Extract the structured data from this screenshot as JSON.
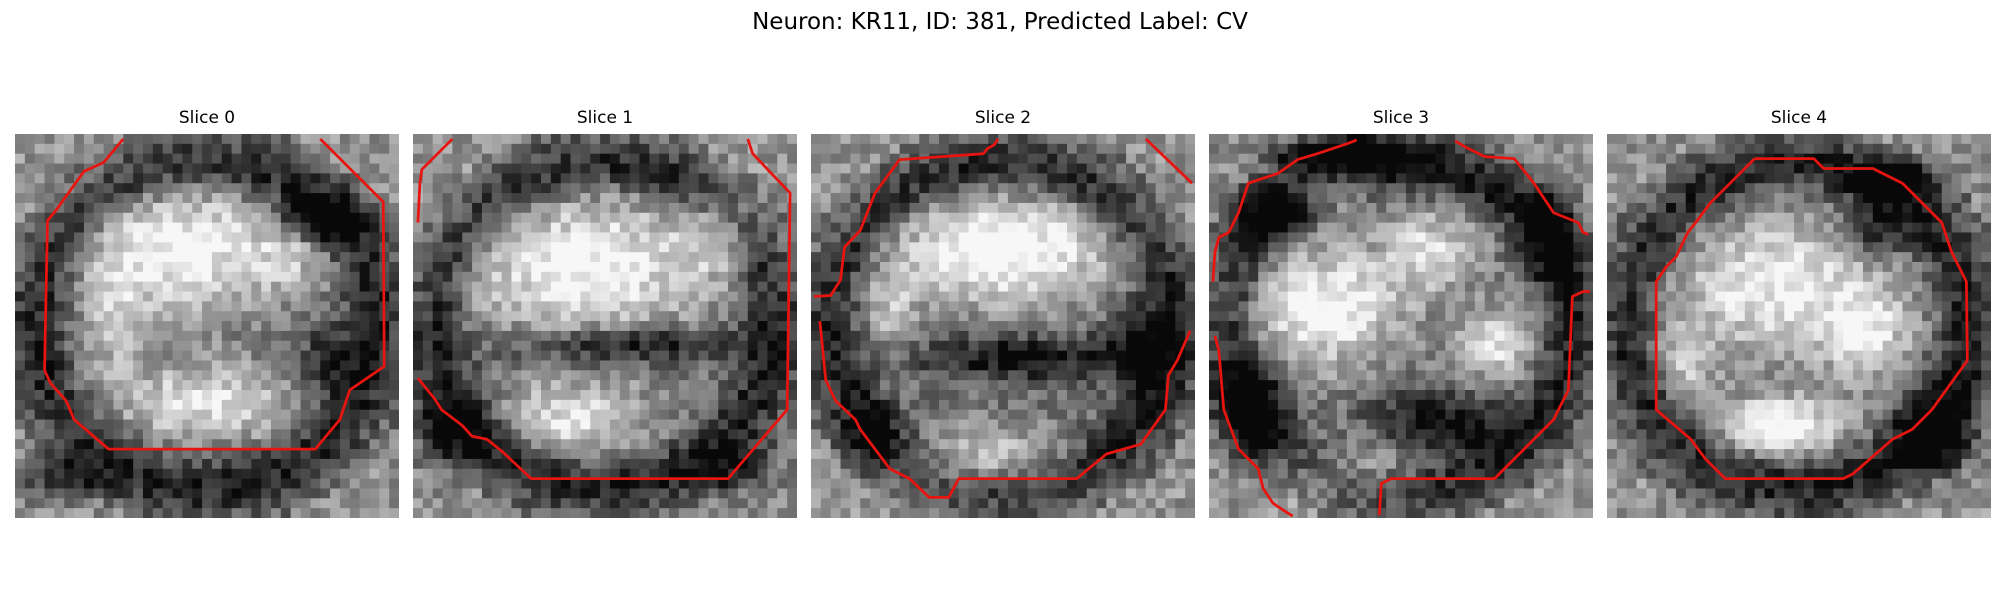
{
  "figure": {
    "title": "Neuron: KR11, ID: 381, Predicted Label: CV",
    "contour_color": "#e8140f",
    "slices": [
      {
        "title": "Slice 0",
        "seed": 11,
        "bright_blobs": [
          [
            0.43,
            0.3,
            0.25,
            0.16,
            0.55
          ],
          [
            0.5,
            0.7,
            0.22,
            0.1,
            0.45
          ],
          [
            0.25,
            0.5,
            0.08,
            0.15,
            0.25
          ],
          [
            0.72,
            0.3,
            0.1,
            0.1,
            0.25
          ]
        ],
        "dark_blobs": [
          [
            0.8,
            0.22,
            0.12,
            0.06,
            0.55
          ],
          [
            0.12,
            0.9,
            0.12,
            0.06,
            0.35
          ],
          [
            0.82,
            0.6,
            0.08,
            0.1,
            0.35
          ]
        ],
        "contours": [
          [
            [
              3.0,
              24.0
            ],
            [
              3.3,
              8.8
            ],
            [
              4.2,
              7.7
            ],
            [
              7.0,
              3.8
            ],
            [
              9.0,
              2.9
            ],
            [
              11.0,
              0.5
            ]
          ],
          [
            [
              3.0,
              24.0
            ],
            [
              3.6,
              25.3
            ],
            [
              5.2,
              27.1
            ],
            [
              6.0,
              29.0
            ],
            [
              9.5,
              32.0
            ],
            [
              30.5,
              32.0
            ],
            [
              33.0,
              29.0
            ],
            [
              34.0,
              26.0
            ],
            [
              37.5,
              23.6
            ],
            [
              37.4,
              6.9
            ],
            [
              31.0,
              0.5
            ]
          ]
        ]
      },
      {
        "title": "Slice 1",
        "seed": 22,
        "bright_blobs": [
          [
            0.45,
            0.35,
            0.3,
            0.18,
            0.55
          ],
          [
            0.42,
            0.74,
            0.18,
            0.09,
            0.45
          ],
          [
            0.8,
            0.25,
            0.1,
            0.12,
            0.3
          ]
        ],
        "dark_blobs": [
          [
            0.55,
            0.55,
            0.3,
            0.05,
            0.45
          ],
          [
            0.1,
            0.78,
            0.1,
            0.1,
            0.35
          ],
          [
            0.85,
            0.88,
            0.12,
            0.06,
            0.3
          ]
        ],
        "contours": [
          [
            [
              0.5,
              9.0
            ],
            [
              0.7,
              5.0
            ],
            [
              0.9,
              3.6
            ],
            [
              4.0,
              0.5
            ]
          ],
          [
            [
              0.5,
              24.8
            ],
            [
              2.2,
              26.9
            ],
            [
              2.9,
              28.0
            ],
            [
              5.0,
              29.6
            ],
            [
              6.0,
              30.7
            ],
            [
              7.5,
              31.0
            ],
            [
              9.0,
              32.2
            ],
            [
              12.0,
              35.0
            ],
            [
              32.0,
              35.0
            ],
            [
              38.0,
              28.0
            ],
            [
              38.3,
              6.0
            ],
            [
              34.5,
              2.0
            ],
            [
              34.0,
              0.5
            ]
          ]
        ]
      },
      {
        "title": "Slice 2",
        "seed": 33,
        "bright_blobs": [
          [
            0.5,
            0.3,
            0.28,
            0.14,
            0.6
          ],
          [
            0.45,
            0.85,
            0.22,
            0.08,
            0.4
          ],
          [
            0.2,
            0.45,
            0.08,
            0.12,
            0.25
          ]
        ],
        "dark_blobs": [
          [
            0.55,
            0.58,
            0.28,
            0.06,
            0.45
          ],
          [
            0.85,
            0.55,
            0.08,
            0.12,
            0.35
          ],
          [
            0.15,
            0.8,
            0.08,
            0.08,
            0.3
          ]
        ],
        "contours": [
          [
            [
              0.3,
              16.5
            ],
            [
              2.0,
              16.4
            ],
            [
              3.0,
              14.8
            ],
            [
              3.4,
              11.5
            ],
            [
              5.0,
              9.8
            ],
            [
              6.5,
              6.0
            ],
            [
              9.0,
              2.6
            ],
            [
              17.5,
              2.0
            ],
            [
              17.9,
              1.5
            ],
            [
              18.6,
              1.1
            ],
            [
              19.0,
              0.5
            ]
          ],
          [
            [
              0.9,
              19.0
            ],
            [
              1.5,
              25.0
            ],
            [
              2.5,
              27.1
            ],
            [
              4.5,
              29.0
            ],
            [
              5.0,
              30.0
            ],
            [
              8.0,
              34.0
            ],
            [
              10.0,
              35.0
            ],
            [
              12.0,
              36.9
            ],
            [
              14.0,
              36.9
            ],
            [
              15.0,
              35.0
            ],
            [
              27.0,
              35.0
            ],
            [
              30.0,
              32.5
            ],
            [
              33.5,
              31.5
            ],
            [
              36.0,
              28.0
            ],
            [
              36.3,
              24.5
            ],
            [
              37.2,
              23.0
            ],
            [
              38.5,
              20.0
            ]
          ],
          [
            [
              34.0,
              0.5
            ],
            [
              38.7,
              5.0
            ]
          ]
        ]
      },
      {
        "title": "Slice 3",
        "seed": 44,
        "bright_blobs": [
          [
            0.3,
            0.45,
            0.2,
            0.15,
            0.55
          ],
          [
            0.58,
            0.3,
            0.12,
            0.1,
            0.4
          ],
          [
            0.75,
            0.55,
            0.1,
            0.1,
            0.4
          ],
          [
            0.38,
            0.87,
            0.2,
            0.08,
            0.35
          ],
          [
            0.3,
            0.15,
            0.1,
            0.06,
            0.25
          ]
        ],
        "dark_blobs": [
          [
            0.35,
            0.05,
            0.2,
            0.05,
            0.5
          ],
          [
            0.1,
            0.72,
            0.08,
            0.12,
            0.5
          ],
          [
            0.6,
            0.75,
            0.18,
            0.08,
            0.45
          ],
          [
            0.9,
            0.25,
            0.06,
            0.12,
            0.4
          ],
          [
            0.15,
            0.2,
            0.1,
            0.08,
            0.4
          ]
        ],
        "contours": [
          [
            [
              0.4,
              15.0
            ],
            [
              0.6,
              12.0
            ],
            [
              1.0,
              10.5
            ],
            [
              2.0,
              10.0
            ],
            [
              3.0,
              8.0
            ],
            [
              4.0,
              5.0
            ],
            [
              7.0,
              4.0
            ],
            [
              9.0,
              2.6
            ],
            [
              11.0,
              2.0
            ],
            [
              14.0,
              1.0
            ],
            [
              15.0,
              0.6
            ]
          ],
          [
            [
              25.0,
              0.7
            ],
            [
              26.0,
              1.3
            ],
            [
              28.0,
              2.3
            ],
            [
              31.0,
              2.5
            ],
            [
              33.0,
              5.0
            ],
            [
              35.0,
              8.0
            ],
            [
              37.5,
              9.0
            ],
            [
              38.0,
              10.0
            ],
            [
              38.5,
              10.2
            ]
          ],
          [
            [
              0.6,
              20.5
            ],
            [
              1.0,
              22.0
            ],
            [
              1.5,
              28.0
            ],
            [
              3.0,
              32.0
            ],
            [
              5.0,
              34.0
            ],
            [
              5.5,
              36.0
            ],
            [
              6.5,
              37.5
            ],
            [
              8.0,
              38.5
            ],
            [
              8.5,
              38.8
            ]
          ],
          [
            [
              17.3,
              38.7
            ],
            [
              17.5,
              35.5
            ],
            [
              18.5,
              35.0
            ],
            [
              29.0,
              35.0
            ],
            [
              35.0,
              29.0
            ],
            [
              36.5,
              26.0
            ],
            [
              36.9,
              16.5
            ],
            [
              38.0,
              16.0
            ],
            [
              38.7,
              16.0
            ]
          ]
        ]
      },
      {
        "title": "Slice 4",
        "seed": 55,
        "bright_blobs": [
          [
            0.45,
            0.4,
            0.26,
            0.18,
            0.5
          ],
          [
            0.45,
            0.76,
            0.16,
            0.07,
            0.6
          ],
          [
            0.68,
            0.52,
            0.1,
            0.12,
            0.4
          ],
          [
            0.2,
            0.6,
            0.08,
            0.1,
            0.3
          ]
        ],
        "dark_blobs": [
          [
            0.75,
            0.12,
            0.12,
            0.05,
            0.5
          ],
          [
            0.85,
            0.78,
            0.1,
            0.1,
            0.5
          ],
          [
            0.7,
            0.25,
            0.08,
            0.08,
            0.35
          ]
        ],
        "contours": [
          [
            [
              15.0,
              2.5
            ],
            [
              21.0,
              2.5
            ],
            [
              22.0,
              3.5
            ],
            [
              27.0,
              3.5
            ],
            [
              30.0,
              5.0
            ],
            [
              34.0,
              9.0
            ],
            [
              35.0,
              12.0
            ],
            [
              36.5,
              15.0
            ],
            [
              36.6,
              23.0
            ],
            [
              33.0,
              28.0
            ],
            [
              31.0,
              30.0
            ],
            [
              29.0,
              31.0
            ],
            [
              25.0,
              34.5
            ],
            [
              24.0,
              35.0
            ],
            [
              12.0,
              35.0
            ],
            [
              10.0,
              33.0
            ],
            [
              8.5,
              31.0
            ],
            [
              5.0,
              28.0
            ],
            [
              5.0,
              15.0
            ],
            [
              6.0,
              13.5
            ],
            [
              7.0,
              12.5
            ],
            [
              8.2,
              10.0
            ],
            [
              9.0,
              9.0
            ],
            [
              10.5,
              7.0
            ],
            [
              15.0,
              2.5
            ]
          ]
        ]
      }
    ]
  }
}
